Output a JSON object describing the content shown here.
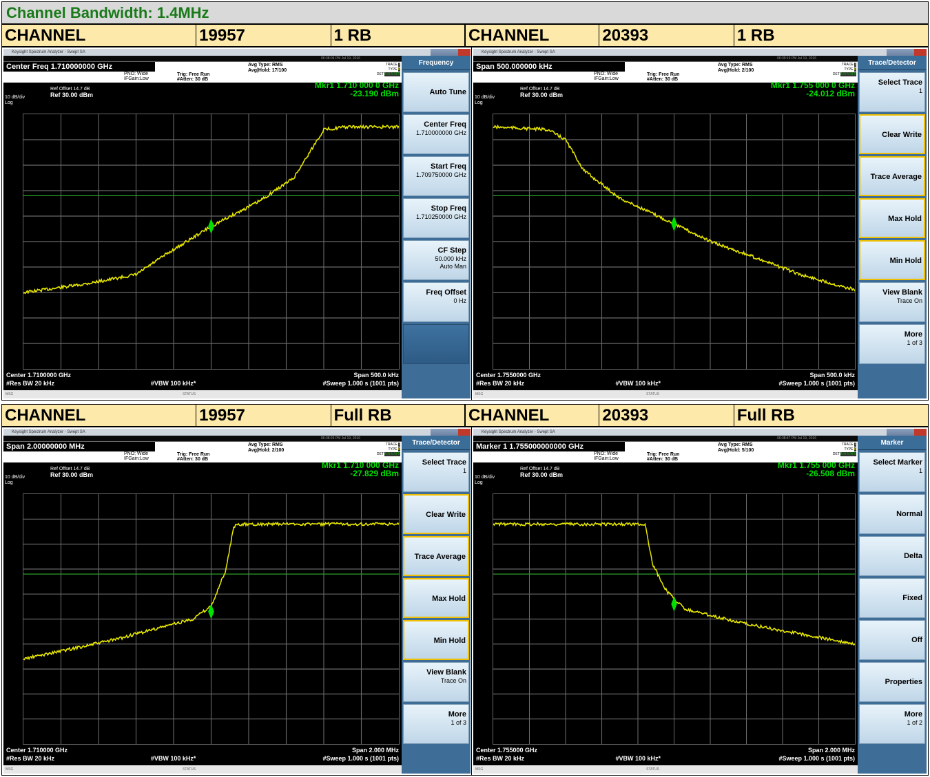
{
  "page_title": "Channel Bandwidth: 1.4MHz",
  "header_rows": [
    [
      {
        "label": "CHANNEL",
        "num": "19957",
        "rb": "1 RB"
      },
      {
        "label": "CHANNEL",
        "num": "20393",
        "rb": "1 RB"
      }
    ],
    [
      {
        "label": "CHANNEL",
        "num": "19957",
        "rb": "Full RB"
      },
      {
        "label": "CHANNEL",
        "num": "20393",
        "rb": "Full RB"
      }
    ]
  ],
  "colors": {
    "trace": "#e8e800",
    "grid": "#6a6a6a",
    "marker_text": "#00e000",
    "display_line": "#2aa02a",
    "softkey_panel": "#3e6e97"
  },
  "screens": [
    {
      "app_title": "Keysight Spectrum Analyzer - Swept SA",
      "timestamp": "06:38:04 PM Jul 19, 2016",
      "main_param": "Center Freq 1.710000000 GHz",
      "pno": "PNO: Wide",
      "ifgain": "IFGain:Low",
      "trig": "Trig: Free Run",
      "atten": "#Atten: 30 dB",
      "avg_type": "Avg Type: RMS",
      "avg_hold": "Avg|Hold: 17/100",
      "ref_offset": "Ref Offset 14.7 dB",
      "ref_level": "Ref 30.00 dBm",
      "scale": "10 dB/div",
      "scale_type": "Log",
      "marker_freq": "Mkr1 1.710 000 0 GHz",
      "marker_amp": "-23.190 dBm",
      "center": "Center 1.7100000 GHz",
      "span": "Span 500.0 kHz",
      "res_bw": "#Res BW 20 kHz",
      "vbw": "#VBW 100 kHz*",
      "sweep": "#Sweep  1.000 s (1001 pts)",
      "msg": "MSG",
      "status": "STATUS",
      "panel_title": "Frequency",
      "softkeys": [
        {
          "label": "Auto Tune",
          "value": "",
          "selected": false
        },
        {
          "label": "Center Freq",
          "value": "1.710000000 GHz",
          "selected": false
        },
        {
          "label": "Start Freq",
          "value": "1.709750000 GHz",
          "selected": false
        },
        {
          "label": "Stop Freq",
          "value": "1.710250000 GHz",
          "selected": false
        },
        {
          "label": "CF Step",
          "value": "50.000 kHz",
          "value2": "Auto    Man",
          "selected": false
        },
        {
          "label": "Freq Offset",
          "value": "0 Hz",
          "selected": false
        },
        {
          "label": "",
          "value": "",
          "selected": false,
          "empty": true
        }
      ],
      "trace_shape": "rise_1rb"
    },
    {
      "app_title": "Keysight Spectrum Analyzer - Swept SA",
      "timestamp": "06:39:19 PM Jul 19, 2016",
      "main_param": "Span 500.000000 kHz",
      "pno": "PNO: Wide",
      "ifgain": "IFGain:Low",
      "trig": "Trig: Free Run",
      "atten": "#Atten: 30 dB",
      "avg_type": "Avg Type: RMS",
      "avg_hold": "Avg|Hold: 2/100",
      "ref_offset": "Ref Offset 14.7 dB",
      "ref_level": "Ref 30.00 dBm",
      "scale": "10 dB/div",
      "scale_type": "Log",
      "marker_freq": "Mkr1 1.755 000 0 GHz",
      "marker_amp": "-24.012 dBm",
      "center": "Center 1.7550000 GHz",
      "span": "Span 500.0 kHz",
      "res_bw": "#Res BW 20 kHz",
      "vbw": "#VBW 100 kHz*",
      "sweep": "#Sweep  1.000 s (1001 pts)",
      "msg": "MSG",
      "status": "STATUS",
      "panel_title": "Trace/Detector",
      "softkeys": [
        {
          "label": "Select Trace",
          "value": "1",
          "selected": false
        },
        {
          "label": "Clear Write",
          "value": "",
          "selected": true
        },
        {
          "label": "Trace Average",
          "value": "",
          "selected": true
        },
        {
          "label": "Max Hold",
          "value": "",
          "selected": true
        },
        {
          "label": "Min Hold",
          "value": "",
          "selected": true
        },
        {
          "label": "View Blank",
          "value": "Trace On",
          "selected": false
        },
        {
          "label": "More",
          "value": "1 of 3",
          "selected": false
        }
      ],
      "trace_shape": "fall_1rb"
    },
    {
      "app_title": "Keysight Spectrum Analyzer - Swept SA",
      "timestamp": "06:38:25 PM Jul 19, 2016",
      "main_param": "Span 2.00000000 MHz",
      "pno": "PNO: Wide",
      "ifgain": "IFGain:Low",
      "trig": "Trig: Free Run",
      "atten": "#Atten: 30 dB",
      "avg_type": "Avg Type: RMS",
      "avg_hold": "Avg|Hold: 2/100",
      "ref_offset": "Ref Offset 14.7 dB",
      "ref_level": "Ref 30.00 dBm",
      "scale": "10 dB/div",
      "scale_type": "Log",
      "marker_freq": "Mkr1 1.710 000 GHz",
      "marker_amp": "-27.829 dBm",
      "center": "Center 1.710000 GHz",
      "span": "Span 2.000 MHz",
      "res_bw": "#Res BW 20 kHz",
      "vbw": "#VBW 100 kHz*",
      "sweep": "#Sweep  1.000 s (1001 pts)",
      "msg": "MSG",
      "status": "STATUS",
      "panel_title": "Trace/Detector",
      "softkeys": [
        {
          "label": "Select Trace",
          "value": "1",
          "selected": false
        },
        {
          "label": "Clear Write",
          "value": "",
          "selected": true
        },
        {
          "label": "Trace Average",
          "value": "",
          "selected": true
        },
        {
          "label": "Max Hold",
          "value": "",
          "selected": true
        },
        {
          "label": "Min Hold",
          "value": "",
          "selected": true
        },
        {
          "label": "View Blank",
          "value": "Trace On",
          "selected": false
        },
        {
          "label": "More",
          "value": "1 of 3",
          "selected": false
        }
      ],
      "trace_shape": "rise_full"
    },
    {
      "app_title": "Keysight Spectrum Analyzer - Swept SA",
      "timestamp": "06:38:47 PM Jul 19, 2016",
      "main_param": "Marker 1 1.755000000000 GHz",
      "pno": "PNO: Wide",
      "ifgain": "IFGain:Low",
      "trig": "Trig: Free Run",
      "atten": "#Atten: 30 dB",
      "avg_type": "Avg Type: RMS",
      "avg_hold": "Avg|Hold: 5/100",
      "ref_offset": "Ref Offset 14.7 dB",
      "ref_level": "Ref 30.00 dBm",
      "scale": "10 dB/div",
      "scale_type": "Log",
      "marker_freq": "Mkr1 1.755 000 GHz",
      "marker_amp": "-26.508 dBm",
      "center": "Center 1.755000 GHz",
      "span": "Span 2.000 MHz",
      "res_bw": "#Res BW 20 kHz",
      "vbw": "#VBW 100 kHz*",
      "sweep": "#Sweep  1.000 s (1001 pts)",
      "msg": "MSG",
      "status": "STATUS",
      "panel_title": "Marker",
      "softkeys": [
        {
          "label": "Select Marker",
          "value": "1",
          "selected": false
        },
        {
          "label": "Normal",
          "value": "",
          "selected": false
        },
        {
          "label": "Delta",
          "value": "",
          "selected": false
        },
        {
          "label": "Fixed",
          "value": "",
          "selected": false
        },
        {
          "label": "Off",
          "value": "",
          "selected": false
        },
        {
          "label": "Properties",
          "value": "",
          "selected": false
        },
        {
          "label": "More",
          "value": "1 of 2",
          "selected": false
        }
      ],
      "trace_shape": "fall_full"
    }
  ]
}
